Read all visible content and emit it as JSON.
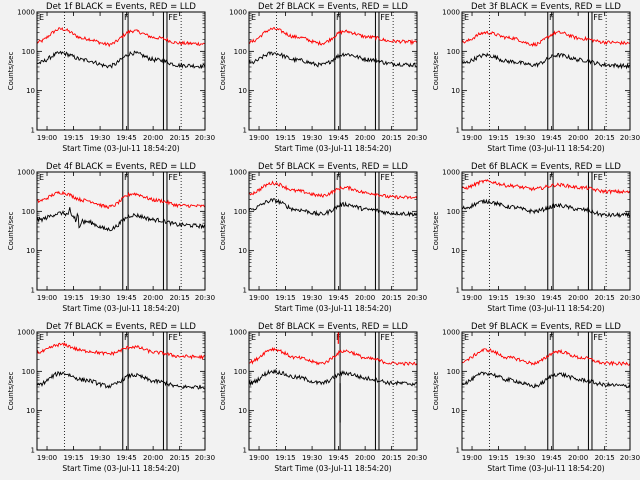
{
  "chart_data": {
    "type": "line",
    "ylabel": "Counts/sec",
    "xlabel": "Start Time (03-Jul-11 18:54:20)",
    "x_ticks": [
      "19:00",
      "19:15",
      "19:30",
      "19:45",
      "20:00",
      "20:15",
      "20:30"
    ],
    "y_ticks": [
      "1",
      "10",
      "100",
      "1000"
    ],
    "ylim": [
      1,
      1000
    ],
    "y_scale": "log",
    "xlim_minutes": [
      0,
      95
    ],
    "flag_labels": [
      "E",
      "F",
      "FE"
    ],
    "colors": {
      "events": "#000000",
      "lld": "#ff0000",
      "background": "#f2f2f2"
    },
    "panels": [
      {
        "title": "Det 1f BLACK = Events, RED = LLD",
        "events": [
          50,
          90,
          60,
          42,
          90,
          60,
          44,
          42
        ],
        "lld": [
          170,
          370,
          210,
          150,
          330,
          220,
          160,
          155
        ],
        "spikes": []
      },
      {
        "title": "Det 2f BLACK = Events, RED = LLD",
        "events": [
          50,
          90,
          60,
          45,
          85,
          62,
          48,
          45
        ],
        "lld": [
          170,
          370,
          230,
          160,
          320,
          230,
          180,
          170
        ],
        "spikes": []
      },
      {
        "title": "Det 3f BLACK = Events, RED = LLD",
        "events": [
          50,
          80,
          55,
          45,
          80,
          60,
          45,
          42
        ],
        "lld": [
          170,
          300,
          220,
          150,
          300,
          210,
          170,
          160
        ],
        "spikes": []
      },
      {
        "title": "Det 4f BLACK = Events, RED = LLD",
        "events": [
          60,
          90,
          55,
          35,
          80,
          60,
          45,
          42
        ],
        "lld": [
          180,
          300,
          190,
          130,
          280,
          190,
          140,
          135
        ],
        "spikes": []
      },
      {
        "title": "Det 5f BLACK = Events, RED = LLD",
        "events": [
          110,
          190,
          110,
          85,
          150,
          110,
          90,
          85
        ],
        "lld": [
          280,
          520,
          330,
          250,
          400,
          290,
          230,
          220
        ],
        "spikes": []
      },
      {
        "title": "Det 6f BLACK = Events, RED = LLD",
        "events": [
          120,
          180,
          130,
          100,
          140,
          110,
          80,
          80
        ],
        "lld": [
          380,
          580,
          450,
          370,
          470,
          400,
          320,
          310
        ],
        "spikes": []
      },
      {
        "title": "Det 7f BLACK = Events, RED = LLD",
        "events": [
          45,
          90,
          60,
          42,
          80,
          55,
          40,
          40
        ],
        "lld": [
          300,
          480,
          330,
          280,
          420,
          300,
          240,
          230
        ],
        "spikes": []
      },
      {
        "title": "Det 8f BLACK = Events, RED = LLD",
        "events": [
          50,
          100,
          70,
          50,
          90,
          65,
          50,
          48
        ],
        "lld": [
          170,
          370,
          220,
          160,
          330,
          210,
          160,
          155
        ],
        "spikes": [
          [
            50.5,
            1000,
            500
          ],
          [
            51.5,
            5,
            50
          ]
        ]
      },
      {
        "title": "Det 9f BLACK = Events, RED = LLD",
        "events": [
          50,
          90,
          60,
          42,
          85,
          60,
          45,
          42
        ],
        "lld": [
          180,
          350,
          220,
          160,
          320,
          220,
          160,
          155
        ],
        "spikes": []
      }
    ]
  }
}
